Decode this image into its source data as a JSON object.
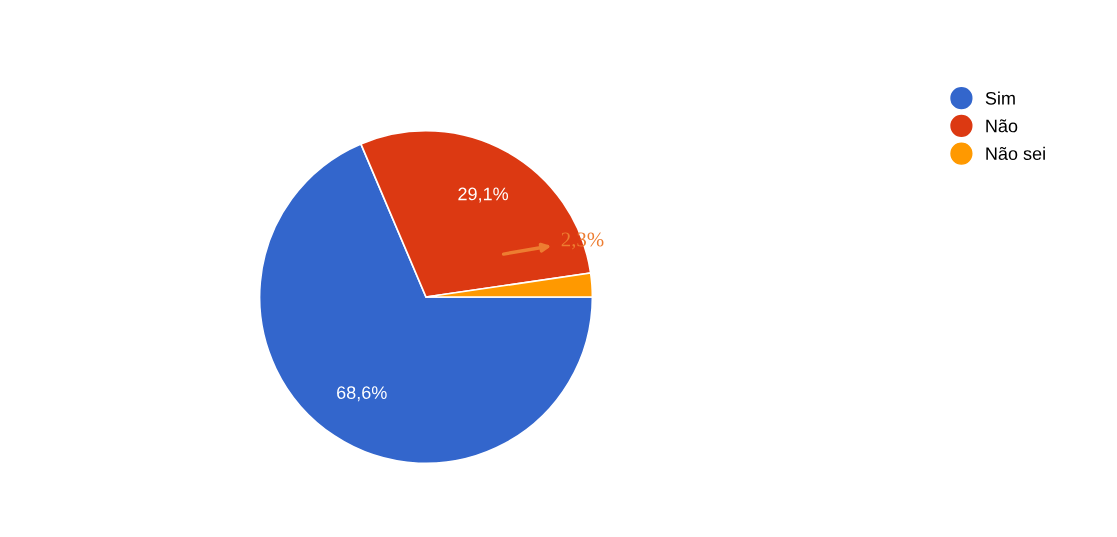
{
  "chart_data": {
    "type": "pie",
    "categories": [
      "Sim",
      "Não",
      "Não sei"
    ],
    "values": [
      68.6,
      29.1,
      2.3
    ],
    "colors": [
      "#3366cc",
      "#dc3912",
      "#ff9900"
    ],
    "value_labels": [
      "68,6%",
      "29,1%",
      null
    ],
    "annotations": [
      "2,3%"
    ],
    "legend": "right"
  }
}
